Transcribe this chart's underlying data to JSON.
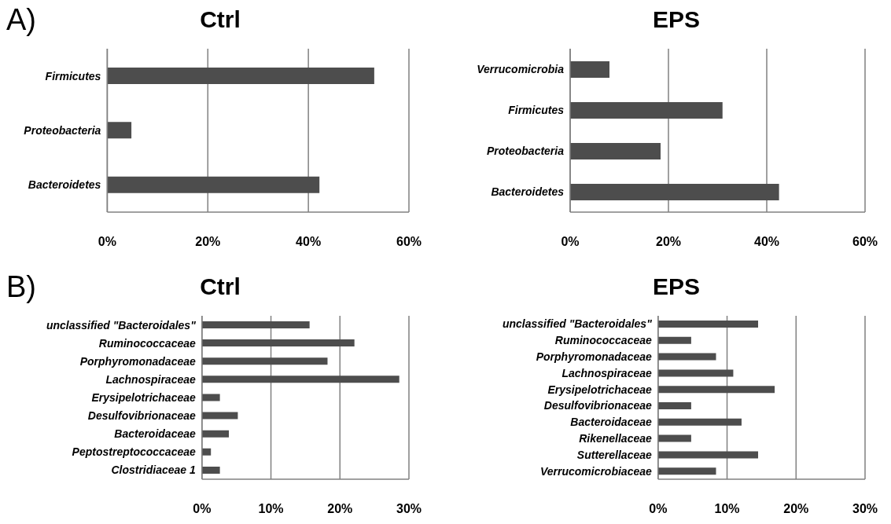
{
  "chart_data": [
    {
      "type": "bar",
      "orientation": "horizontal",
      "title": "Ctrl",
      "annotations": [
        "A)"
      ],
      "categories": [
        "Firmicutes",
        "Proteobacteria",
        "Bacteroidetes"
      ],
      "values": [
        53.1,
        4.8,
        42.2
      ],
      "color": "#4d4d4d",
      "xlim": [
        0,
        60
      ],
      "xticks": [
        {
          "value": 0,
          "label": "0%"
        },
        {
          "value": 20,
          "label": "20%"
        },
        {
          "value": 40,
          "label": "40%"
        },
        {
          "value": 60,
          "label": "60%"
        }
      ],
      "grid": "x",
      "legend": false
    },
    {
      "type": "bar",
      "orientation": "horizontal",
      "title": "EPS",
      "categories": [
        "Verrucomicrobia",
        "Firmicutes",
        "Proteobacteria",
        "Bacteroidetes"
      ],
      "values": [
        8.0,
        31.0,
        18.4,
        42.5
      ],
      "color": "#4d4d4d",
      "xlim": [
        0,
        60
      ],
      "xticks": [
        {
          "value": 0,
          "label": "0%"
        },
        {
          "value": 20,
          "label": "20%"
        },
        {
          "value": 40,
          "label": "40%"
        },
        {
          "value": 60,
          "label": "60%"
        }
      ],
      "grid": "x",
      "legend": false
    },
    {
      "type": "bar",
      "orientation": "horizontal",
      "title": "Ctrl",
      "annotations": [
        "B)"
      ],
      "categories": [
        "unclassified \"Bacteroidales\"",
        "Ruminococcaceae",
        "Porphyromonadaceae",
        "Lachnospiraceae",
        "Erysipelotrichaceae",
        "Desulfovibrionaceae",
        "Bacteroidaceae",
        "Peptostreptococcaceae",
        "Clostridiaceae 1"
      ],
      "values": [
        15.6,
        22.1,
        18.2,
        28.6,
        2.6,
        5.2,
        3.9,
        1.3,
        2.6
      ],
      "color": "#4d4d4d",
      "xlim": [
        0,
        30
      ],
      "xticks": [
        {
          "value": 0,
          "label": "0%"
        },
        {
          "value": 10,
          "label": "10%"
        },
        {
          "value": 20,
          "label": "20%"
        },
        {
          "value": 30,
          "label": "30%"
        }
      ],
      "grid": "x",
      "legend": false
    },
    {
      "type": "bar",
      "orientation": "horizontal",
      "title": "EPS",
      "categories": [
        "unclassified \"Bacteroidales\"",
        "Ruminococcaceae",
        "Porphyromonadaceae",
        "Lachnospiraceae",
        "Erysipelotrichaceae",
        "Desulfovibrionaceae",
        "Bacteroidaceae",
        "Rikenellaceae",
        "Sutterellaceae",
        "Verrucomicrobiaceae"
      ],
      "values": [
        14.5,
        4.8,
        8.4,
        10.9,
        16.9,
        4.8,
        12.1,
        4.8,
        14.5,
        8.4
      ],
      "color": "#4d4d4d",
      "xlim": [
        0,
        30
      ],
      "xticks": [
        {
          "value": 0,
          "label": "0%"
        },
        {
          "value": 10,
          "label": "10%"
        },
        {
          "value": 20,
          "label": "20%"
        },
        {
          "value": 30,
          "label": "30%"
        }
      ],
      "grid": "x",
      "legend": false
    }
  ]
}
